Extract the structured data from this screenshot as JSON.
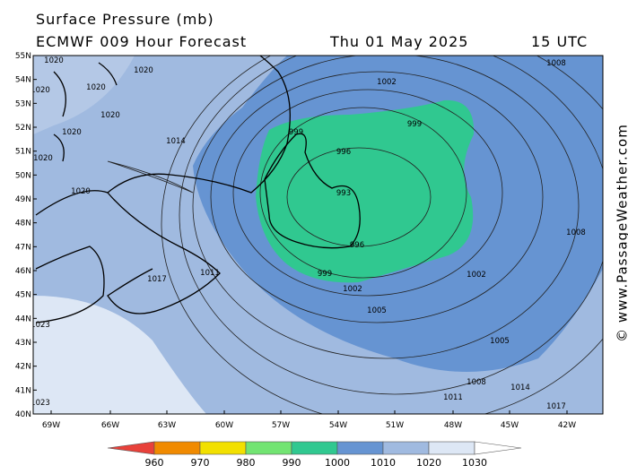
{
  "header": {
    "title": "Surface Pressure (mb)",
    "model": "ECMWF 009 Hour Forecast",
    "date": "Thu 01 May 2025",
    "time": "15 UTC"
  },
  "map": {
    "lat_labels": [
      "55N",
      "54N",
      "53N",
      "52N",
      "51N",
      "50N",
      "49N",
      "48N",
      "47N",
      "46N",
      "45N",
      "44N",
      "43N",
      "42N",
      "41N",
      "40N"
    ],
    "lon_labels": [
      "69W",
      "66W",
      "63W",
      "60W",
      "57W",
      "54W",
      "51W",
      "48W",
      "45W",
      "42W"
    ],
    "isobar_labels": [
      "1020",
      "1020",
      "1020",
      "1020",
      "1020",
      "1020",
      "1020",
      "1020",
      "1014",
      "1002",
      "999",
      "999",
      "996",
      "993",
      "996",
      "999",
      "1002",
      "1002",
      "1005",
      "1005",
      "1008",
      "1008",
      "1008",
      "1011",
      "1011",
      "1014",
      "1017",
      "1017",
      "1023",
      "1023"
    ]
  },
  "colorbar": {
    "ticks": [
      960,
      970,
      980,
      990,
      1000,
      1010,
      1020,
      1030
    ],
    "colors": [
      "#e8413a",
      "#f08a00",
      "#f2e000",
      "#72e472",
      "#30c890",
      "#6694d2",
      "#a0bae0",
      "#dde7f5",
      "#ffffff"
    ]
  },
  "credit": "© www.PassageWeather.com"
}
